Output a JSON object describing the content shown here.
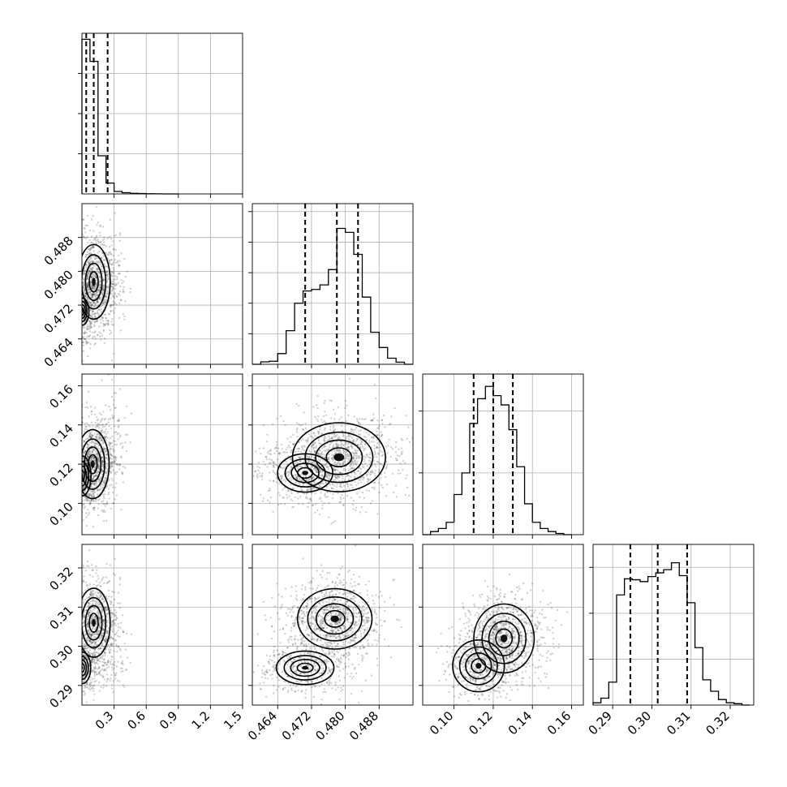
{
  "chart_data": {
    "type": "corner",
    "grid": true,
    "n_params": 4,
    "param_ranges": [
      [
        0.0,
        1.5
      ],
      [
        0.458,
        0.496
      ],
      [
        0.084,
        0.166
      ],
      [
        0.285,
        0.326
      ]
    ],
    "x_ticks": [
      {
        "values": [
          0.3,
          0.6,
          0.9,
          1.2,
          1.5
        ],
        "labels": [
          "0.3",
          "0.6",
          "0.9",
          "1.2",
          "1.5"
        ]
      },
      {
        "values": [
          0.464,
          0.472,
          0.48,
          0.488
        ],
        "labels": [
          "0.464",
          "0.472",
          "0.480",
          "0.488"
        ]
      },
      {
        "values": [
          0.1,
          0.12,
          0.14,
          0.16
        ],
        "labels": [
          "0.10",
          "0.12",
          "0.14",
          "0.16"
        ]
      },
      {
        "values": [
          0.29,
          0.3,
          0.31,
          0.32
        ],
        "labels": [
          "0.29",
          "0.30",
          "0.31",
          "0.32"
        ]
      }
    ],
    "y_ticks": [
      null,
      {
        "values": [
          0.464,
          0.472,
          0.48,
          0.488
        ],
        "labels": [
          "0.464",
          "0.472",
          "0.480",
          "0.488"
        ]
      },
      {
        "values": [
          0.1,
          0.12,
          0.14,
          0.16
        ],
        "labels": [
          "0.10",
          "0.12",
          "0.14",
          "0.16"
        ]
      },
      {
        "values": [
          0.29,
          0.3,
          0.31,
          0.32
        ],
        "labels": [
          "0.29",
          "0.30",
          "0.31",
          "0.32"
        ]
      }
    ],
    "hist_y_ticks": [
      [
        1,
        2,
        3
      ],
      [
        1,
        2,
        3,
        4,
        5
      ],
      [
        1,
        2
      ],
      [
        1,
        2,
        3
      ]
    ],
    "histograms": [
      {
        "edges": [
          0.0,
          0.075,
          0.15,
          0.225,
          0.3,
          0.375,
          0.45,
          0.525,
          0.6,
          0.675,
          0.75,
          0.825,
          0.9
        ],
        "heights": [
          3.85,
          3.3,
          0.95,
          0.27,
          0.06,
          0.03,
          0.015,
          0.01,
          0.005,
          0.003,
          0.0,
          0.0
        ],
        "ymax": 4.0,
        "quantiles": [
          0.04,
          0.11,
          0.24
        ]
      },
      {
        "edges": [
          0.458,
          0.46,
          0.462,
          0.464,
          0.466,
          0.468,
          0.47,
          0.472,
          0.474,
          0.476,
          0.478,
          0.48,
          0.482,
          0.484,
          0.486,
          0.488,
          0.49,
          0.492,
          0.494,
          0.496
        ],
        "heights": [
          0.0,
          0.08,
          0.1,
          0.35,
          1.1,
          2.0,
          2.4,
          2.45,
          2.6,
          3.1,
          4.45,
          4.32,
          3.6,
          2.2,
          1.05,
          0.55,
          0.2,
          0.07,
          0.0
        ],
        "ymax": 5.26,
        "quantiles": [
          0.4705,
          0.478,
          0.483
        ]
      },
      {
        "edges": [
          0.084,
          0.088,
          0.092,
          0.096,
          0.1,
          0.104,
          0.108,
          0.112,
          0.116,
          0.12,
          0.124,
          0.128,
          0.132,
          0.136,
          0.14,
          0.144,
          0.148,
          0.152,
          0.156,
          0.16
        ],
        "heights": [
          0.0,
          0.05,
          0.1,
          0.2,
          0.65,
          1.0,
          1.8,
          2.2,
          2.4,
          2.25,
          2.1,
          1.7,
          1.1,
          0.5,
          0.2,
          0.1,
          0.05,
          0.02,
          0.0
        ],
        "ymax": 2.6,
        "quantiles": [
          0.11,
          0.12,
          0.13
        ]
      },
      {
        "edges": [
          0.285,
          0.287,
          0.289,
          0.291,
          0.293,
          0.295,
          0.297,
          0.299,
          0.301,
          0.303,
          0.305,
          0.307,
          0.309,
          0.311,
          0.313,
          0.315,
          0.317,
          0.319,
          0.321,
          0.323,
          0.325
        ],
        "heights": [
          0.05,
          0.15,
          0.5,
          2.4,
          2.75,
          2.73,
          2.69,
          2.8,
          2.88,
          2.95,
          3.1,
          2.82,
          2.23,
          1.25,
          0.55,
          0.3,
          0.12,
          0.05,
          0.03,
          0.0
        ],
        "ymax": 3.5,
        "quantiles": [
          0.2945,
          0.3015,
          0.309
        ]
      }
    ],
    "density_modes": [
      {
        "x": 1,
        "y": 0,
        "peaks": [
          [
            0.0,
            0.4705,
            0.35
          ],
          [
            0.11,
            0.4775,
            1.0
          ]
        ],
        "spread": [
          [
            0.05,
            0.0025
          ],
          [
            0.07,
            0.004
          ]
        ],
        "tail": [
          0.35,
          0.4775
        ]
      },
      {
        "x": 2,
        "y": 0,
        "peaks": [
          [
            0.0,
            0.114,
            0.6
          ],
          [
            0.1,
            0.12,
            1.0
          ]
        ],
        "spread": [
          [
            0.05,
            0.006
          ],
          [
            0.07,
            0.008
          ]
        ],
        "tail": [
          0.35,
          0.135
        ]
      },
      {
        "x": 3,
        "y": 0,
        "peaks": [
          [
            0.0,
            0.2945,
            0.55
          ],
          [
            0.11,
            0.306,
            1.0
          ]
        ],
        "spread": [
          [
            0.05,
            0.0025
          ],
          [
            0.07,
            0.004
          ]
        ],
        "tail": [
          0.35,
          0.297
        ]
      },
      {
        "x": 2,
        "y": 1,
        "peaks": [
          [
            0.4705,
            0.1155,
            0.55
          ],
          [
            0.4785,
            0.1235,
            1.0
          ]
        ],
        "spread": [
          [
            0.004,
            0.006
          ],
          [
            0.005,
            0.008
          ]
        ],
        "tail": null
      },
      {
        "x": 3,
        "y": 1,
        "peaks": [
          [
            0.4705,
            0.2945,
            0.6
          ],
          [
            0.4775,
            0.307,
            1.0
          ]
        ],
        "spread": [
          [
            0.004,
            0.0025
          ],
          [
            0.004,
            0.0035
          ]
        ],
        "tail": null
      },
      {
        "x": 3,
        "y": 2,
        "peaks": [
          [
            0.1125,
            0.295,
            1.0
          ],
          [
            0.1255,
            0.302,
            0.8
          ]
        ],
        "spread": [
          [
            0.006,
            0.003
          ],
          [
            0.007,
            0.004
          ]
        ],
        "tail": null
      }
    ]
  }
}
